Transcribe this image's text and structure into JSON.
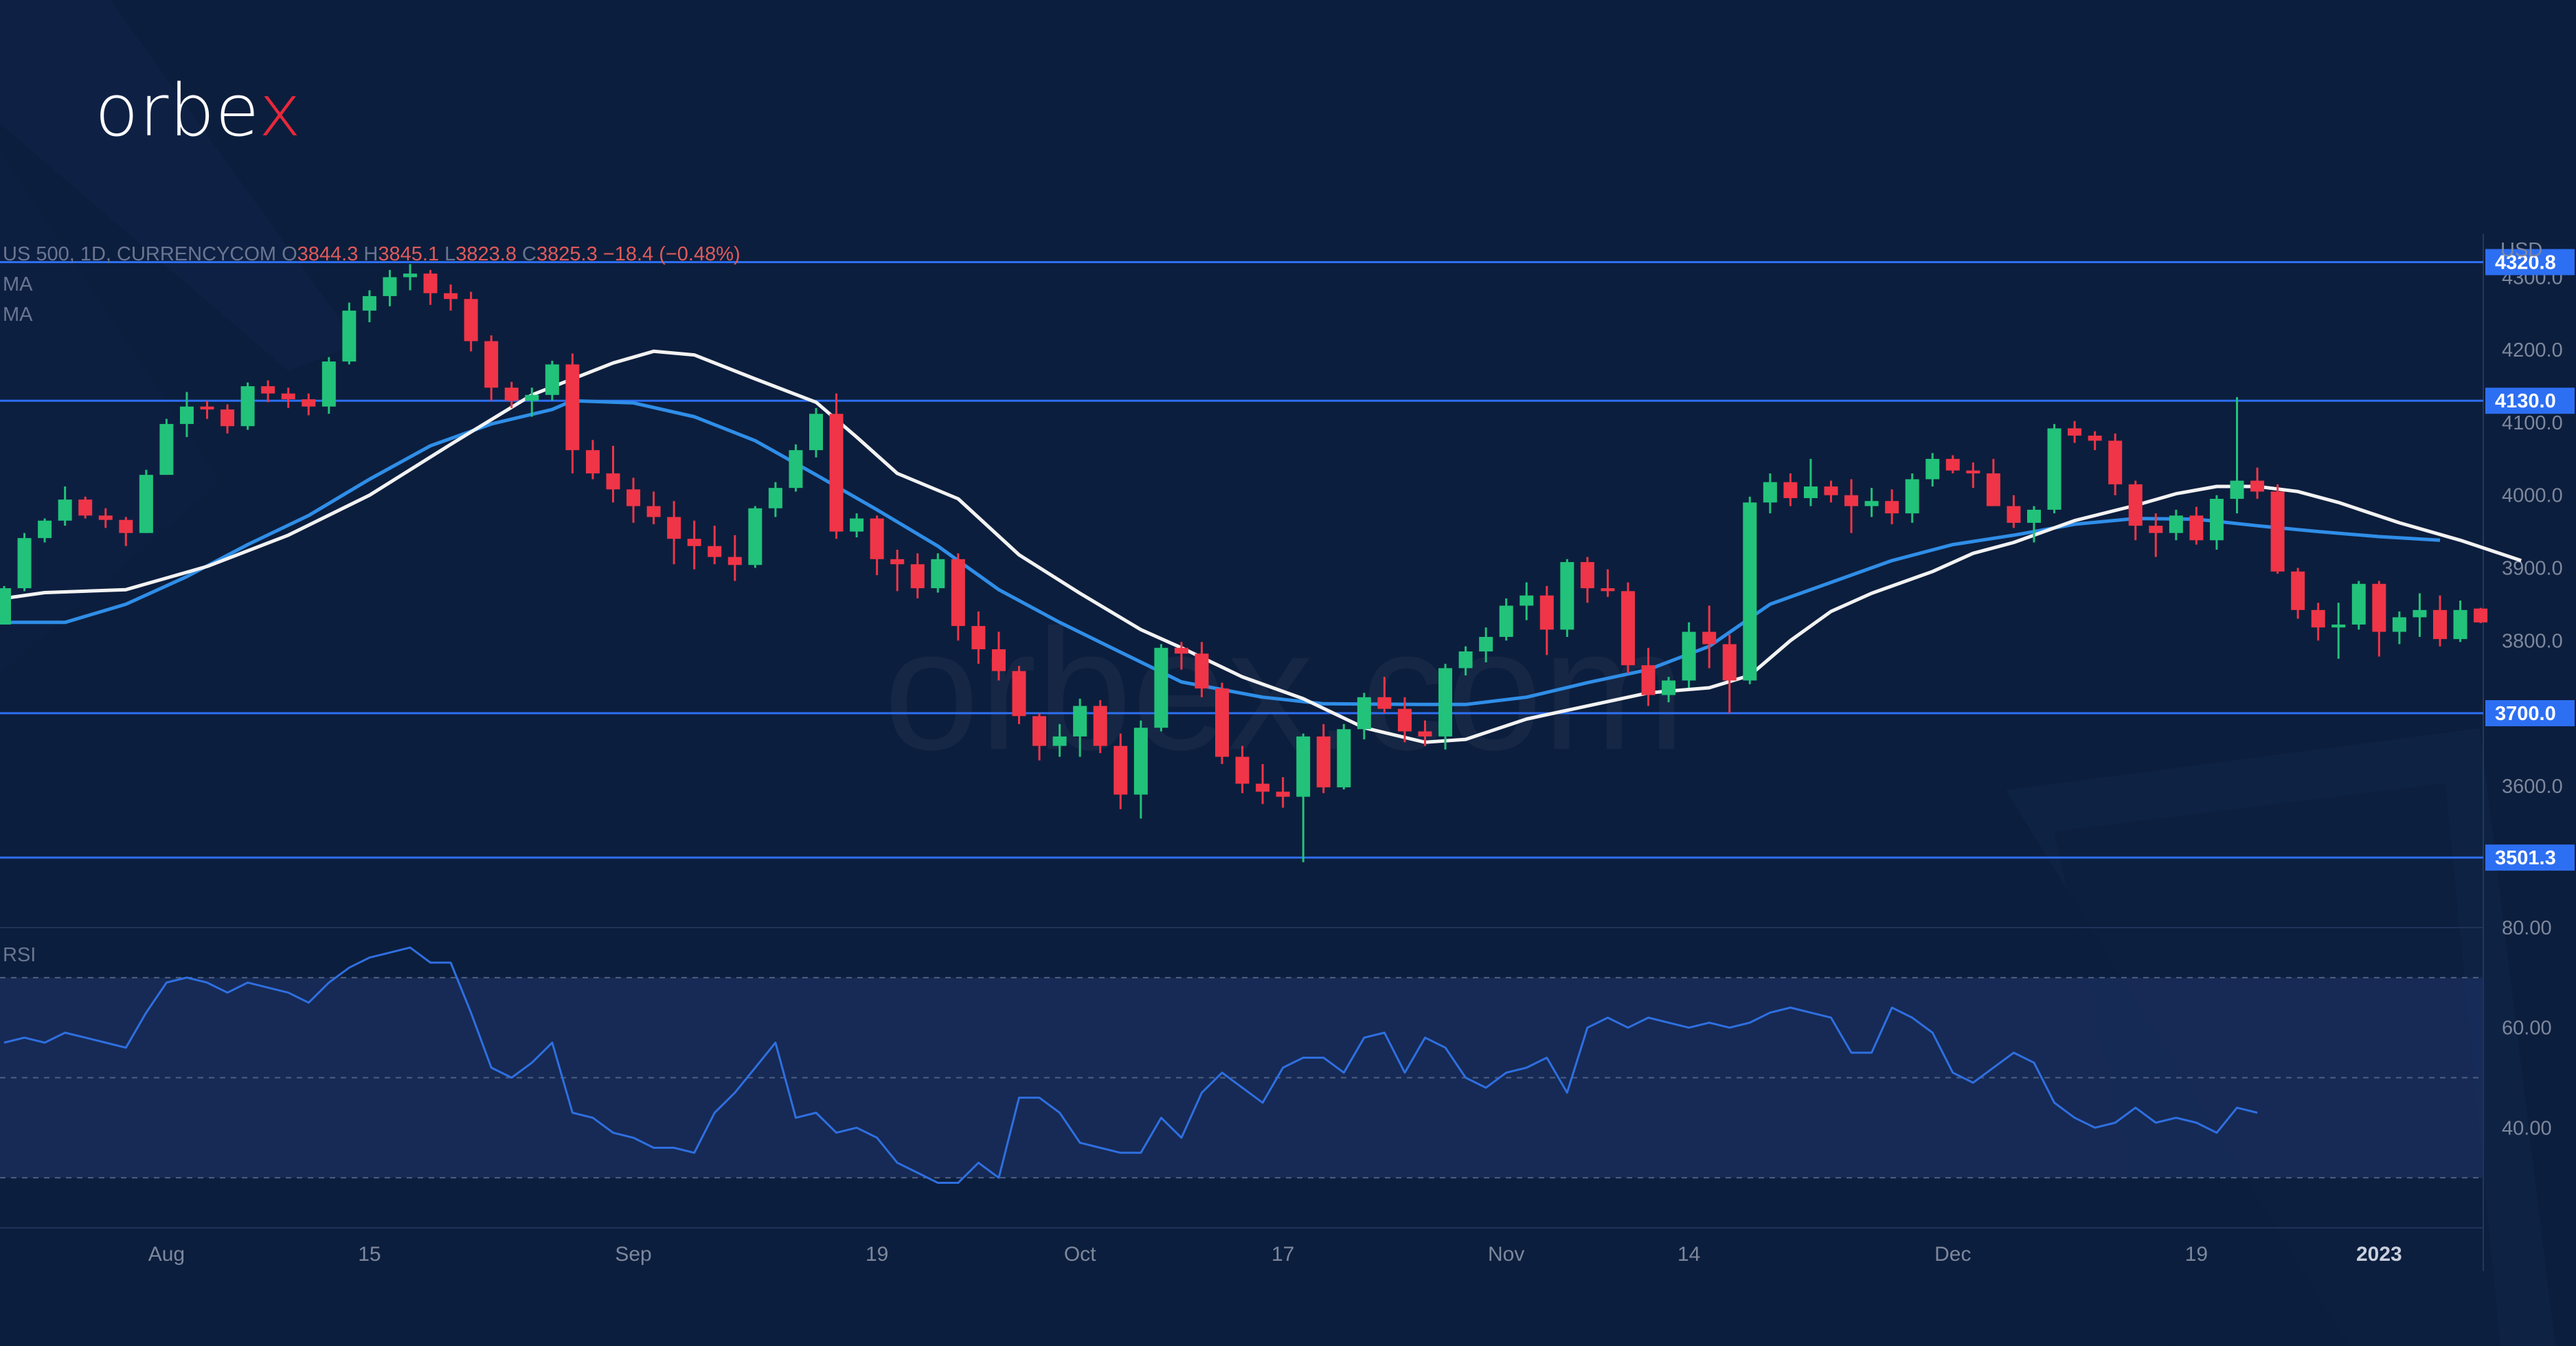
{
  "brand": {
    "name_main": "orbe",
    "name_accent": "x",
    "watermark": "orbex.com",
    "accent_color": "#e8283a"
  },
  "header": {
    "symbol": "US 500, 1D, CURRENCYCOM",
    "open_label": "O",
    "open": "3844.3",
    "high_label": "H",
    "high": "3845.1",
    "low_label": "L",
    "low": "3823.8",
    "close_label": "C",
    "close": "3825.3",
    "change": "−18.4 (−0.48%)",
    "ma1_label": "MA",
    "ma2_label": "MA",
    "currency": "USD"
  },
  "rsi_panel": {
    "label": "RSI",
    "ticks": [
      "80.00",
      "60.00",
      "40.00"
    ],
    "tick_values": [
      80,
      60,
      40
    ],
    "band": [
      30,
      70
    ],
    "mid": 50,
    "range": [
      20,
      80
    ]
  },
  "chart_data": {
    "type": "candlestick",
    "title": "US 500, 1D, CURRENCYCOM",
    "ylabel": "USD",
    "ylim": [
      3405,
      4360
    ],
    "y_ticks": [
      4300,
      4200,
      4100,
      4000,
      3900,
      3800,
      3700,
      3600
    ],
    "y_tick_labels": [
      "4300.0",
      "4200.0",
      "4100.0",
      "4000.0",
      "3900.0",
      "3800.0",
      "3700.0",
      "3600.0"
    ],
    "x_ticks": [
      {
        "label": "Aug",
        "index": 8
      },
      {
        "label": "15",
        "index": 18
      },
      {
        "label": "Sep",
        "index": 31
      },
      {
        "label": "19",
        "index": 43
      },
      {
        "label": "Oct",
        "index": 53
      },
      {
        "label": "17",
        "index": 63
      },
      {
        "label": "Nov",
        "index": 74
      },
      {
        "label": "14",
        "index": 83
      },
      {
        "label": "Dec",
        "index": 96
      },
      {
        "label": "19",
        "index": 108
      },
      {
        "label": "2023",
        "index": 117
      }
    ],
    "levels": [
      4320.8,
      4130.0,
      3700.0,
      3501.3
    ],
    "level_labels": [
      "4320.8",
      "4130.0",
      "3700.0",
      "3501.3"
    ],
    "colors": {
      "up": "#22c27a",
      "down": "#ef3547",
      "level": "#2d6ff2",
      "ma_fast": "#f3f3f3",
      "ma_slow": "#2f8ee8",
      "rsi": "#2f6fe0"
    },
    "candles": [
      [
        3822,
        3875,
        3822,
        3872
      ],
      [
        3872,
        3948,
        3868,
        3941
      ],
      [
        3941,
        3968,
        3935,
        3965
      ],
      [
        3965,
        4012,
        3958,
        3994
      ],
      [
        3994,
        3998,
        3968,
        3972
      ],
      [
        3972,
        3982,
        3955,
        3966
      ],
      [
        3966,
        3970,
        3930,
        3948
      ],
      [
        3948,
        4035,
        3948,
        4028
      ],
      [
        4028,
        4105,
        4028,
        4098
      ],
      [
        4098,
        4142,
        4080,
        4122
      ],
      [
        4122,
        4130,
        4105,
        4118
      ],
      [
        4118,
        4125,
        4085,
        4095
      ],
      [
        4095,
        4155,
        4090,
        4150
      ],
      [
        4150,
        4158,
        4128,
        4140
      ],
      [
        4140,
        4148,
        4120,
        4132
      ],
      [
        4132,
        4140,
        4110,
        4122
      ],
      [
        4122,
        4190,
        4112,
        4184
      ],
      [
        4184,
        4265,
        4180,
        4254
      ],
      [
        4254,
        4282,
        4238,
        4274
      ],
      [
        4274,
        4310,
        4260,
        4300
      ],
      [
        4300,
        4318,
        4282,
        4305
      ],
      [
        4305,
        4310,
        4262,
        4278
      ],
      [
        4278,
        4290,
        4254,
        4270
      ],
      [
        4270,
        4280,
        4198,
        4212
      ],
      [
        4212,
        4220,
        4130,
        4148
      ],
      [
        4148,
        4156,
        4120,
        4130
      ],
      [
        4130,
        4148,
        4108,
        4138
      ],
      [
        4138,
        4185,
        4130,
        4180
      ],
      [
        4180,
        4195,
        4030,
        4062
      ],
      [
        4062,
        4076,
        4022,
        4030
      ],
      [
        4030,
        4068,
        3990,
        4008
      ],
      [
        4008,
        4024,
        3962,
        3985
      ],
      [
        3985,
        4005,
        3960,
        3970
      ],
      [
        3970,
        3992,
        3905,
        3940
      ],
      [
        3940,
        3965,
        3898,
        3930
      ],
      [
        3930,
        3958,
        3905,
        3915
      ],
      [
        3915,
        3945,
        3882,
        3904
      ],
      [
        3904,
        3985,
        3900,
        3982
      ],
      [
        3982,
        4018,
        3970,
        4010
      ],
      [
        4010,
        4070,
        4005,
        4062
      ],
      [
        4062,
        4120,
        4052,
        4112
      ],
      [
        4112,
        4140,
        3940,
        3950
      ],
      [
        3950,
        3975,
        3942,
        3968
      ],
      [
        3968,
        3972,
        3890,
        3912
      ],
      [
        3912,
        3925,
        3868,
        3905
      ],
      [
        3905,
        3920,
        3858,
        3872
      ],
      [
        3872,
        3920,
        3866,
        3912
      ],
      [
        3912,
        3920,
        3800,
        3820
      ],
      [
        3820,
        3840,
        3768,
        3788
      ],
      [
        3788,
        3812,
        3745,
        3758
      ],
      [
        3758,
        3765,
        3685,
        3696
      ],
      [
        3696,
        3700,
        3635,
        3655
      ],
      [
        3655,
        3685,
        3640,
        3668
      ],
      [
        3668,
        3720,
        3640,
        3710
      ],
      [
        3710,
        3718,
        3645,
        3655
      ],
      [
        3655,
        3672,
        3568,
        3588
      ],
      [
        3588,
        3690,
        3555,
        3680
      ],
      [
        3680,
        3795,
        3675,
        3790
      ],
      [
        3790,
        3798,
        3760,
        3782
      ],
      [
        3782,
        3798,
        3722,
        3734
      ],
      [
        3734,
        3742,
        3630,
        3640
      ],
      [
        3640,
        3655,
        3590,
        3603
      ],
      [
        3603,
        3630,
        3575,
        3592
      ],
      [
        3592,
        3612,
        3570,
        3585
      ],
      [
        3585,
        3672,
        3495,
        3668
      ],
      [
        3668,
        3685,
        3590,
        3598
      ],
      [
        3598,
        3685,
        3595,
        3678
      ],
      [
        3678,
        3728,
        3664,
        3722
      ],
      [
        3722,
        3750,
        3700,
        3706
      ],
      [
        3706,
        3722,
        3660,
        3675
      ],
      [
        3675,
        3690,
        3655,
        3668
      ],
      [
        3668,
        3768,
        3650,
        3762
      ],
      [
        3762,
        3792,
        3752,
        3785
      ],
      [
        3785,
        3818,
        3770,
        3805
      ],
      [
        3805,
        3858,
        3800,
        3848
      ],
      [
        3848,
        3880,
        3828,
        3862
      ],
      [
        3862,
        3875,
        3780,
        3815
      ],
      [
        3815,
        3912,
        3805,
        3908
      ],
      [
        3908,
        3915,
        3852,
        3872
      ],
      [
        3872,
        3898,
        3860,
        3868
      ],
      [
        3868,
        3880,
        3755,
        3766
      ],
      [
        3766,
        3790,
        3710,
        3725
      ],
      [
        3725,
        3750,
        3715,
        3745
      ],
      [
        3745,
        3825,
        3735,
        3812
      ],
      [
        3812,
        3848,
        3762,
        3795
      ],
      [
        3795,
        3808,
        3700,
        3745
      ],
      [
        3745,
        3998,
        3740,
        3990
      ],
      [
        3990,
        4030,
        3975,
        4018
      ],
      [
        4018,
        4030,
        3985,
        3996
      ],
      [
        3996,
        4050,
        3985,
        4012
      ],
      [
        4012,
        4020,
        3990,
        4000
      ],
      [
        4000,
        4022,
        3948,
        3985
      ],
      [
        3985,
        4010,
        3970,
        3992
      ],
      [
        3992,
        4008,
        3960,
        3975
      ],
      [
        3975,
        4030,
        3962,
        4022
      ],
      [
        4022,
        4058,
        4012,
        4050
      ],
      [
        4050,
        4055,
        4030,
        4034
      ],
      [
        4034,
        4045,
        4010,
        4030
      ],
      [
        4030,
        4050,
        3985,
        3985
      ],
      [
        3985,
        4000,
        3955,
        3962
      ],
      [
        3962,
        3985,
        3935,
        3980
      ],
      [
        3980,
        4098,
        3975,
        4092
      ],
      [
        4092,
        4102,
        4072,
        4082
      ],
      [
        4082,
        4088,
        4062,
        4075
      ],
      [
        4075,
        4085,
        4000,
        4015
      ],
      [
        4015,
        4020,
        3938,
        3958
      ],
      [
        3958,
        3975,
        3915,
        3948
      ],
      [
        3948,
        3980,
        3938,
        3972
      ],
      [
        3972,
        3984,
        3932,
        3938
      ],
      [
        3938,
        4000,
        3925,
        3995
      ],
      [
        3995,
        4135,
        3975,
        4020
      ],
      [
        4020,
        4038,
        3995,
        4005
      ],
      [
        4005,
        4015,
        3892,
        3895
      ],
      [
        3895,
        3900,
        3830,
        3842
      ],
      [
        3842,
        3852,
        3800,
        3818
      ],
      [
        3818,
        3852,
        3775,
        3822
      ],
      [
        3822,
        3882,
        3815,
        3878
      ],
      [
        3878,
        3882,
        3778,
        3812
      ],
      [
        3812,
        3840,
        3795,
        3832
      ],
      [
        3832,
        3865,
        3805,
        3842
      ],
      [
        3842,
        3862,
        3792,
        3802
      ],
      [
        3802,
        3855,
        3798,
        3842
      ],
      [
        3844,
        3845,
        3824,
        3825
      ]
    ],
    "ma_fast": [
      [
        0,
        3858
      ],
      [
        2,
        3866
      ],
      [
        6,
        3870
      ],
      [
        10,
        3902
      ],
      [
        14,
        3945
      ],
      [
        18,
        4000
      ],
      [
        22,
        4070
      ],
      [
        26,
        4138
      ],
      [
        30,
        4182
      ],
      [
        32,
        4198
      ],
      [
        34,
        4193
      ],
      [
        37,
        4160
      ],
      [
        40,
        4128
      ],
      [
        42,
        4080
      ],
      [
        44,
        4030
      ],
      [
        47,
        3995
      ],
      [
        50,
        3918
      ],
      [
        53,
        3865
      ],
      [
        56,
        3815
      ],
      [
        58,
        3790
      ],
      [
        61,
        3750
      ],
      [
        64,
        3720
      ],
      [
        67,
        3680
      ],
      [
        70,
        3660
      ],
      [
        72,
        3664
      ],
      [
        75,
        3692
      ],
      [
        78,
        3710
      ],
      [
        81,
        3728
      ],
      [
        84,
        3735
      ],
      [
        86,
        3752
      ],
      [
        88,
        3800
      ],
      [
        90,
        3840
      ],
      [
        92,
        3865
      ],
      [
        95,
        3895
      ],
      [
        97,
        3920
      ],
      [
        99,
        3935
      ],
      [
        102,
        3965
      ],
      [
        105,
        3986
      ],
      [
        107,
        4002
      ],
      [
        109,
        4012
      ],
      [
        111,
        4012
      ],
      [
        113,
        4005
      ],
      [
        115,
        3990
      ],
      [
        118,
        3962
      ],
      [
        121,
        3938
      ],
      [
        124,
        3910
      ]
    ],
    "ma_slow": [
      [
        0,
        3825
      ],
      [
        3,
        3825
      ],
      [
        6,
        3850
      ],
      [
        9,
        3888
      ],
      [
        12,
        3932
      ],
      [
        15,
        3972
      ],
      [
        18,
        4022
      ],
      [
        21,
        4068
      ],
      [
        24,
        4098
      ],
      [
        27,
        4118
      ],
      [
        28,
        4130
      ],
      [
        31,
        4127
      ],
      [
        34,
        4108
      ],
      [
        37,
        4075
      ],
      [
        40,
        4028
      ],
      [
        43,
        3980
      ],
      [
        46,
        3930
      ],
      [
        49,
        3870
      ],
      [
        52,
        3825
      ],
      [
        55,
        3784
      ],
      [
        58,
        3743
      ],
      [
        62,
        3722
      ],
      [
        65,
        3713
      ],
      [
        70,
        3712
      ],
      [
        72,
        3712
      ],
      [
        75,
        3722
      ],
      [
        78,
        3742
      ],
      [
        81,
        3760
      ],
      [
        84,
        3792
      ],
      [
        87,
        3850
      ],
      [
        90,
        3880
      ],
      [
        93,
        3910
      ],
      [
        96,
        3932
      ],
      [
        99,
        3945
      ],
      [
        102,
        3960
      ],
      [
        105,
        3968
      ],
      [
        108,
        3967
      ],
      [
        111,
        3958
      ],
      [
        114,
        3950
      ],
      [
        117,
        3943
      ],
      [
        120,
        3938
      ]
    ],
    "rsi": [
      57,
      58,
      57,
      59,
      58,
      57,
      56,
      63,
      69,
      70,
      69,
      67,
      69,
      68,
      67,
      65,
      69,
      72,
      74,
      75,
      76,
      73,
      73,
      63,
      52,
      50,
      53,
      57,
      43,
      42,
      39,
      38,
      36,
      36,
      35,
      43,
      47,
      52,
      57,
      42,
      43,
      39,
      40,
      38,
      33,
      31,
      29,
      29,
      33,
      30,
      46,
      46,
      43,
      37,
      36,
      35,
      35,
      42,
      38,
      47,
      51,
      48,
      45,
      52,
      54,
      54,
      51,
      58,
      59,
      51,
      58,
      56,
      50,
      48,
      51,
      52,
      54,
      47,
      60,
      62,
      60,
      62,
      61,
      60,
      61,
      60,
      61,
      63,
      64,
      63,
      62,
      55,
      55,
      64,
      62,
      59,
      51,
      49,
      52,
      55,
      53,
      45,
      42,
      40,
      41,
      44,
      41,
      42,
      41,
      39,
      44,
      43
    ]
  }
}
